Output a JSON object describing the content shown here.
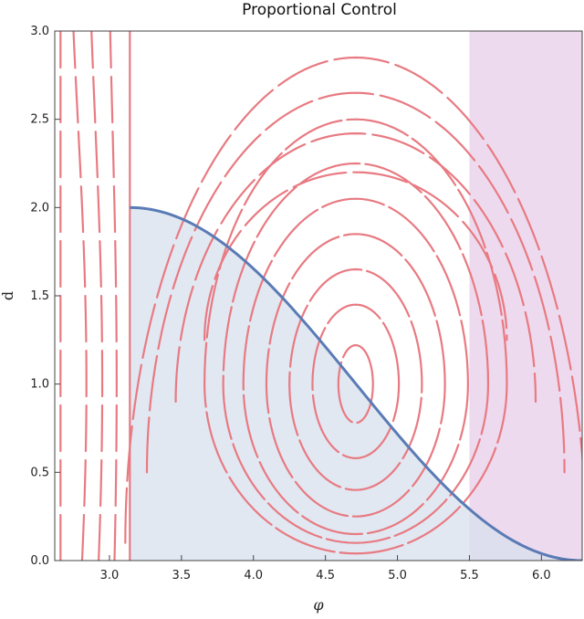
{
  "chart_data": {
    "type": "stream",
    "title": "Proportional Control",
    "xlabel": "φ",
    "ylabel": "d",
    "xlim": [
      2.62,
      6.283
    ],
    "ylim": [
      0,
      3
    ],
    "xticks": [
      "3.0",
      "3.5",
      "4.0",
      "4.5",
      "5.0",
      "5.5",
      "6.0"
    ],
    "yticks": [
      "0.0",
      "0.5",
      "1.0",
      "1.5",
      "2.0",
      "2.5",
      "3.0"
    ],
    "grid": false,
    "regions": [
      {
        "kind": "curve-fill",
        "curve": "d = 1 - cos(φ)",
        "from": 3.1416,
        "to": 6.2832,
        "color": "#d7e0ee"
      },
      {
        "kind": "band",
        "x_from": 5.5,
        "x_to": 6.283,
        "color": "#e8cde8"
      }
    ],
    "boundary": {
      "curve": "d = 1 - cos(φ)",
      "peak": [
        4.71,
        2.0
      ],
      "color": "#5a7bb5"
    },
    "streamlines": {
      "color": "#e87a82",
      "vertical_lines": [
        3.1416
      ],
      "orbits": [
        {
          "center": [
            4.71,
            1.0
          ],
          "a": 0.12,
          "up": 0.22,
          "down": 0.22
        },
        {
          "center": [
            4.71,
            1.0
          ],
          "a": 0.3,
          "up": 0.45,
          "down": 0.42
        },
        {
          "center": [
            4.71,
            1.0
          ],
          "a": 0.46,
          "up": 0.65,
          "down": 0.6
        },
        {
          "center": [
            4.71,
            1.0
          ],
          "a": 0.62,
          "up": 0.85,
          "down": 0.75
        },
        {
          "center": [
            4.71,
            1.0
          ],
          "a": 0.78,
          "up": 1.05,
          "down": 0.85
        },
        {
          "center": [
            4.71,
            1.0
          ],
          "a": 0.92,
          "up": 1.25,
          "down": 0.9
        },
        {
          "center": [
            4.71,
            1.0
          ],
          "a": 1.05,
          "up": 1.5,
          "down": 0.96
        }
      ],
      "arches": [
        {
          "center": 4.71,
          "top": 2.2,
          "half_width": 1.05,
          "bottom": 1.25
        },
        {
          "center": 4.71,
          "top": 2.42,
          "half_width": 1.25,
          "bottom": 0.9
        },
        {
          "center": 4.71,
          "top": 2.65,
          "half_width": 1.45,
          "bottom": 0.5
        },
        {
          "center": 4.71,
          "top": 2.85,
          "half_width": 1.6,
          "bottom": 0.1
        }
      ],
      "left_arcs": [
        {
          "x_at_mid": 2.66,
          "mid": 1.0,
          "bow": 0.0
        },
        {
          "x_at_mid": 2.78,
          "mid": 1.0,
          "bow": 0.06
        },
        {
          "x_at_mid": 2.9,
          "mid": 1.0,
          "bow": 0.05
        },
        {
          "x_at_mid": 3.02,
          "mid": 1.0,
          "bow": 0.03
        }
      ]
    }
  }
}
